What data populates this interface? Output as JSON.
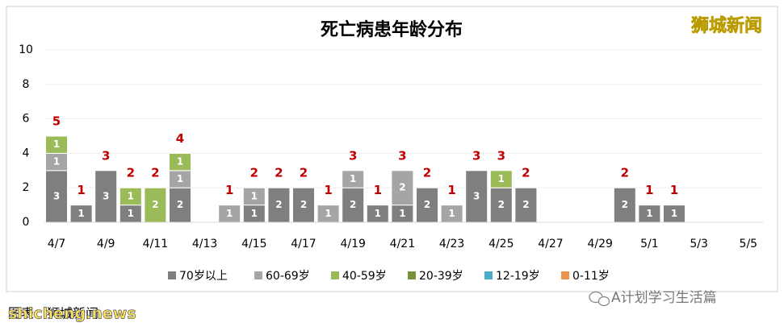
{
  "chart_data": {
    "type": "bar",
    "stacked": true,
    "title": "死亡病患年龄分布",
    "categories": [
      "4/7",
      null,
      "4/9",
      null,
      "4/11",
      null,
      "4/13",
      null,
      "4/15",
      null,
      "4/17",
      null,
      "4/19",
      null,
      "4/21",
      null,
      "4/23",
      null,
      "4/25",
      null,
      "4/27",
      null,
      "4/29",
      null,
      "5/1",
      null,
      "5/3",
      null,
      "5/5"
    ],
    "series": [
      {
        "name": "70岁以上",
        "color": "#7f7f7f",
        "values": [
          3,
          1,
          3,
          1,
          null,
          2,
          null,
          null,
          1,
          2,
          2,
          null,
          2,
          1,
          1,
          2,
          null,
          3,
          2,
          2,
          null,
          null,
          null,
          2,
          1,
          1,
          null,
          null,
          null
        ]
      },
      {
        "name": "60-69岁",
        "color": "#a5a5a5",
        "values": [
          1,
          null,
          null,
          null,
          null,
          1,
          null,
          1,
          1,
          null,
          null,
          1,
          1,
          null,
          2,
          null,
          1,
          null,
          null,
          null,
          null,
          null,
          null,
          null,
          null,
          null,
          null,
          null,
          null
        ]
      },
      {
        "name": "40-59岁",
        "color": "#9bbb59",
        "values": [
          1,
          null,
          null,
          1,
          2,
          1,
          null,
          null,
          null,
          null,
          null,
          null,
          null,
          null,
          null,
          null,
          null,
          null,
          1,
          null,
          null,
          null,
          null,
          null,
          null,
          null,
          null,
          null,
          null
        ]
      },
      {
        "name": "20-39岁",
        "color": "#77933c",
        "values": [
          null,
          null,
          null,
          null,
          null,
          null,
          null,
          null,
          null,
          null,
          null,
          null,
          null,
          null,
          null,
          null,
          null,
          null,
          null,
          null,
          null,
          null,
          null,
          null,
          null,
          null,
          null,
          null,
          null
        ]
      },
      {
        "name": "12-19岁",
        "color": "#4bacc6",
        "values": [
          null,
          null,
          null,
          null,
          null,
          null,
          null,
          null,
          null,
          null,
          null,
          null,
          null,
          null,
          null,
          null,
          null,
          null,
          null,
          null,
          null,
          null,
          null,
          null,
          null,
          null,
          null,
          null,
          null
        ]
      },
      {
        "name": "0-11岁",
        "color": "#e8944d",
        "values": [
          null,
          null,
          null,
          null,
          null,
          null,
          null,
          null,
          null,
          null,
          null,
          null,
          null,
          null,
          null,
          null,
          null,
          null,
          null,
          null,
          null,
          null,
          null,
          null,
          null,
          null,
          null,
          null,
          null
        ]
      }
    ],
    "totals": [
      5,
      1,
      3,
      2,
      2,
      4,
      null,
      1,
      2,
      2,
      2,
      1,
      3,
      1,
      3,
      2,
      1,
      3,
      3,
      2,
      null,
      null,
      null,
      2,
      1,
      1,
      null,
      null,
      null
    ],
    "totals_color": "#c00000",
    "ylim": [
      0,
      10
    ],
    "yticks": [
      0,
      2,
      4,
      6,
      8,
      10
    ],
    "grid": true,
    "legend": "bottom"
  },
  "overlay": {
    "brand": "狮城新闻",
    "source": "图表：狮城新闻",
    "site": "shicheng.news",
    "account": "A计划学习生活篇"
  }
}
